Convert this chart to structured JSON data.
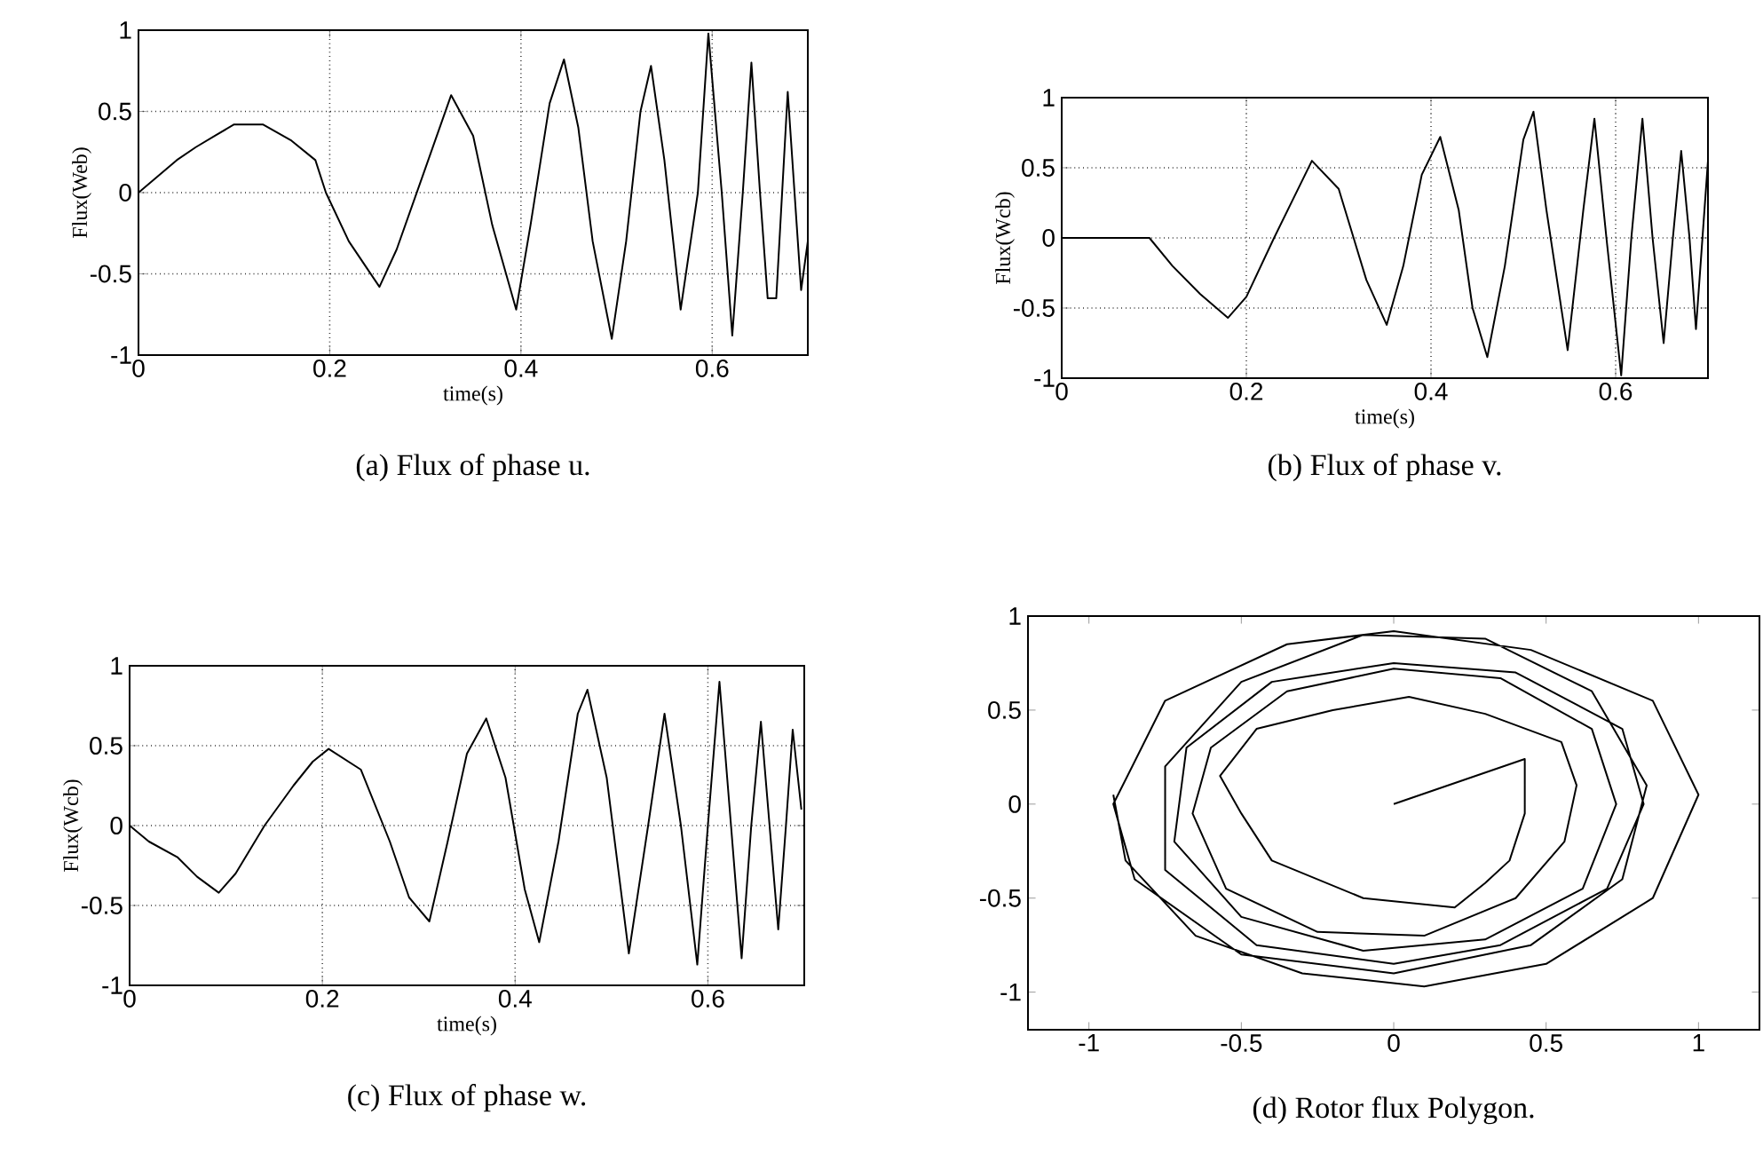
{
  "chart_data": [
    {
      "type": "line",
      "title": "(a) Flux of phase u.",
      "xlabel": "time(s)",
      "ylabel": "Flux(Web)",
      "color": "#000000",
      "grid": true,
      "xlim": [
        0,
        0.7
      ],
      "ylim": [
        -1,
        1
      ],
      "xticks": [
        0,
        0.2,
        0.4,
        0.6
      ],
      "yticks": [
        -1,
        -0.5,
        0,
        0.5,
        1
      ],
      "x": [
        0,
        0.02,
        0.04,
        0.06,
        0.08,
        0.1,
        0.13,
        0.16,
        0.185,
        0.196,
        0.22,
        0.252,
        0.27,
        0.3,
        0.327,
        0.35,
        0.37,
        0.395,
        0.41,
        0.43,
        0.445,
        0.46,
        0.475,
        0.495,
        0.51,
        0.525,
        0.536,
        0.55,
        0.567,
        0.585,
        0.596,
        0.61,
        0.621,
        0.632,
        0.641,
        0.65,
        0.658,
        0.667,
        0.679,
        0.693,
        0.7
      ],
      "values": [
        0,
        0.1,
        0.2,
        0.28,
        0.35,
        0.42,
        0.42,
        0.32,
        0.2,
        0,
        -0.3,
        -0.58,
        -0.35,
        0.15,
        0.6,
        0.35,
        -0.2,
        -0.72,
        -0.2,
        0.55,
        0.82,
        0.4,
        -0.3,
        -0.9,
        -0.3,
        0.5,
        0.78,
        0.2,
        -0.72,
        0,
        0.98,
        0,
        -0.88,
        0,
        0.8,
        0,
        -0.65,
        -0.65,
        0.62,
        -0.6,
        -0.3
      ]
    },
    {
      "type": "line",
      "title": "(b) Flux of phase v.",
      "xlabel": "time(s)",
      "ylabel": "Flux(Wcb)",
      "color": "#000000",
      "grid": true,
      "xlim": [
        0,
        0.7
      ],
      "ylim": [
        -1,
        1
      ],
      "xticks": [
        0,
        0.2,
        0.4,
        0.6
      ],
      "yticks": [
        -1,
        -0.5,
        0,
        0.5,
        1
      ],
      "x": [
        0,
        0.095,
        0.12,
        0.15,
        0.18,
        0.2,
        0.23,
        0.271,
        0.3,
        0.33,
        0.352,
        0.37,
        0.39,
        0.41,
        0.43,
        0.445,
        0.461,
        0.48,
        0.5,
        0.511,
        0.525,
        0.548,
        0.565,
        0.577,
        0.59,
        0.606,
        0.617,
        0.629,
        0.64,
        0.652,
        0.662,
        0.671,
        0.68,
        0.687,
        0.7
      ],
      "values": [
        0,
        0,
        -0.2,
        -0.4,
        -0.57,
        -0.42,
        0,
        0.55,
        0.35,
        -0.3,
        -0.62,
        -0.2,
        0.45,
        0.72,
        0.2,
        -0.5,
        -0.85,
        -0.2,
        0.7,
        0.9,
        0.2,
        -0.8,
        0.2,
        0.85,
        0,
        -0.98,
        0,
        0.85,
        0,
        -0.75,
        0,
        0.62,
        0,
        -0.65,
        0.55
      ]
    },
    {
      "type": "line",
      "title": "(c) Flux of phase w.",
      "xlabel": "time(s)",
      "ylabel": "Flux(Wcb)",
      "color": "#000000",
      "grid": true,
      "xlim": [
        0,
        0.7
      ],
      "ylim": [
        -1,
        1
      ],
      "xticks": [
        0,
        0.2,
        0.4,
        0.6
      ],
      "yticks": [
        -1,
        -0.5,
        0,
        0.5,
        1
      ],
      "x": [
        0,
        0.02,
        0.05,
        0.07,
        0.0925,
        0.11,
        0.14,
        0.17,
        0.19,
        0.2065,
        0.24,
        0.27,
        0.29,
        0.311,
        0.33,
        0.35,
        0.37,
        0.39,
        0.41,
        0.425,
        0.445,
        0.465,
        0.475,
        0.495,
        0.518,
        0.538,
        0.555,
        0.572,
        0.589,
        0.6,
        0.612,
        0.624,
        0.635,
        0.645,
        0.655,
        0.664,
        0.673,
        0.681,
        0.688,
        0.697
      ],
      "values": [
        0,
        -0.1,
        -0.2,
        -0.32,
        -0.42,
        -0.3,
        0,
        0.25,
        0.4,
        0.48,
        0.35,
        -0.1,
        -0.45,
        -0.6,
        -0.1,
        0.45,
        0.67,
        0.3,
        -0.4,
        -0.73,
        -0.1,
        0.7,
        0.85,
        0.3,
        -0.8,
        0,
        0.7,
        0,
        -0.87,
        0,
        0.9,
        0,
        -0.83,
        0,
        0.65,
        0,
        -0.65,
        0,
        0.6,
        0.1
      ]
    },
    {
      "type": "line",
      "title": "(d) Rotor flux Polygon.",
      "color": "#000000",
      "xlim": [
        -1.2,
        1.2
      ],
      "ylim": [
        -1.2,
        1
      ],
      "xticks": [
        -1,
        -0.5,
        0,
        0.5,
        1
      ],
      "yticks": [
        -1,
        -0.5,
        0,
        0.5,
        1
      ],
      "x": [
        0,
        0.43,
        0.43,
        0.38,
        0.3,
        0.2,
        -0.1,
        -0.4,
        -0.5,
        -0.57,
        -0.45,
        -0.2,
        0.05,
        0.3,
        0.55,
        0.6,
        0.56,
        0.4,
        0.1,
        -0.25,
        -0.55,
        -0.66,
        -0.6,
        -0.35,
        0,
        0.35,
        0.65,
        0.73,
        0.62,
        0.3,
        -0.1,
        -0.5,
        -0.72,
        -0.68,
        -0.4,
        0,
        0.4,
        0.75,
        0.82,
        0.7,
        0.35,
        0,
        -0.45,
        -0.75,
        -0.75,
        -0.5,
        -0.1,
        0.3,
        0.65,
        0.83,
        0.75,
        0.45,
        0,
        -0.5,
        -0.85,
        -0.92,
        -0.75,
        -0.35,
        0,
        0.45,
        0.85,
        1.0,
        0.85,
        0.5,
        0.1,
        -0.3,
        -0.65,
        -0.88,
        -0.92
      ],
      "values": [
        0,
        0.24,
        -0.05,
        -0.3,
        -0.42,
        -0.55,
        -0.5,
        -0.3,
        -0.05,
        0.15,
        0.4,
        0.5,
        0.57,
        0.48,
        0.33,
        0.1,
        -0.2,
        -0.5,
        -0.7,
        -0.68,
        -0.45,
        -0.05,
        0.3,
        0.6,
        0.72,
        0.67,
        0.4,
        0,
        -0.45,
        -0.72,
        -0.78,
        -0.6,
        -0.2,
        0.3,
        0.65,
        0.75,
        0.7,
        0.4,
        0,
        -0.45,
        -0.75,
        -0.85,
        -0.75,
        -0.35,
        0.2,
        0.65,
        0.9,
        0.88,
        0.6,
        0.1,
        -0.4,
        -0.75,
        -0.9,
        -0.8,
        -0.4,
        0,
        0.55,
        0.85,
        0.92,
        0.82,
        0.55,
        0.05,
        -0.5,
        -0.85,
        -0.97,
        -0.9,
        -0.7,
        -0.3,
        0.05
      ]
    }
  ]
}
